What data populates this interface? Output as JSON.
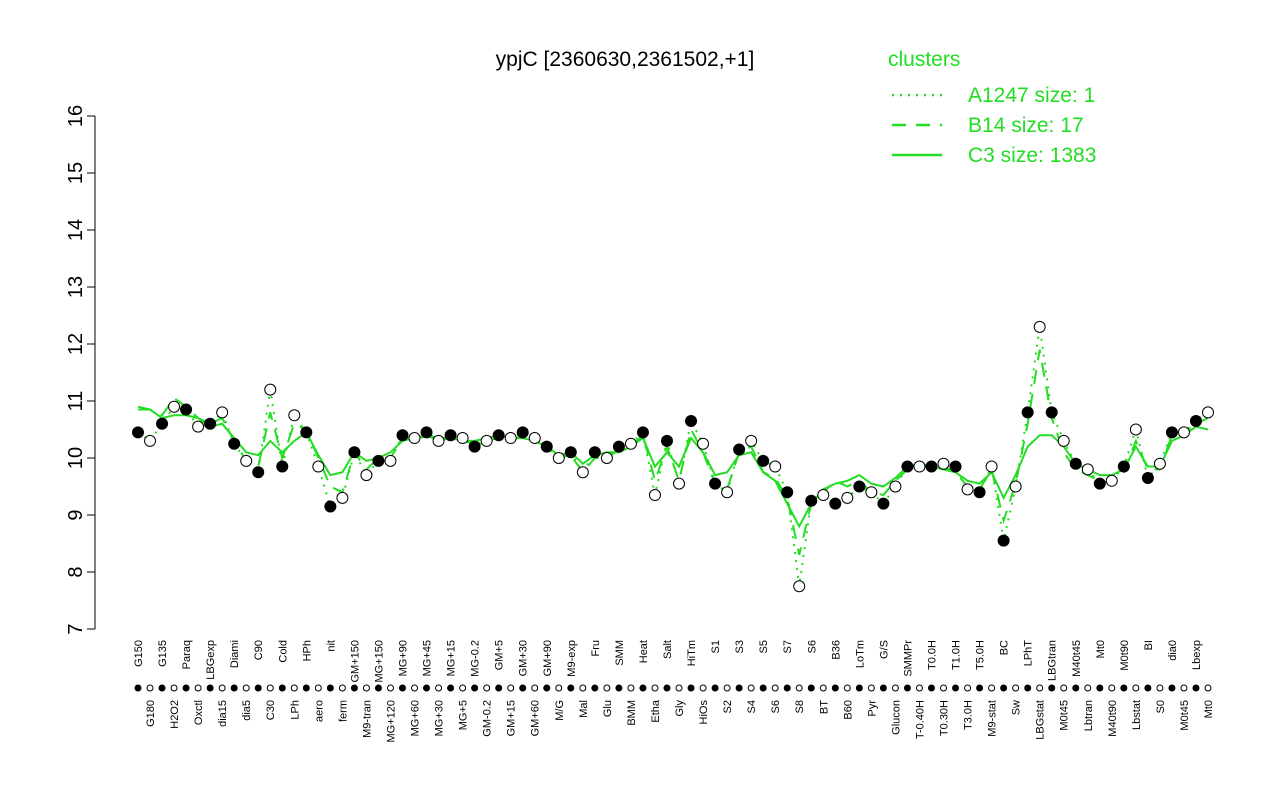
{
  "chart_data": {
    "type": "line",
    "title": "ypjC [2360630,2361502,+1]",
    "legend_title": "clusters",
    "legend_color": "#22dd22",
    "point_color": "#000000",
    "categories": [
      "G150",
      "G180",
      "G135",
      "H2O2",
      "Paraq",
      "Oxctl",
      "LBGexp",
      "dia15",
      "Diami",
      "dia5",
      "C90",
      "C30",
      "Cold",
      "LPh",
      "HPh",
      "aero",
      "nit",
      "ferm",
      "GM+150",
      "M9-tran",
      "MG+150",
      "MG+120",
      "MG+90",
      "MG+60",
      "MG+45",
      "MG+30",
      "MG+15",
      "MG+5",
      "MG-0.2",
      "GM-0.2",
      "GM+5",
      "GM+15",
      "GM+30",
      "GM+60",
      "GM+90",
      "M/G",
      "M9-exp",
      "Mal",
      "Fru",
      "Glu",
      "SMM",
      "BMM",
      "Heat",
      "Etha",
      "Salt",
      "Gly",
      "HiTm",
      "HiOs",
      "S1",
      "S2",
      "S3",
      "S4",
      "S5",
      "S6",
      "S7",
      "S8",
      "S6",
      "BT",
      "B36",
      "B60",
      "LoTm",
      "Pyr",
      "G/S",
      "Glucon",
      "SMMPr",
      "T-0.40H",
      "T0.0H",
      "T0.30H",
      "T1.0H",
      "T3.0H",
      "T5.0H",
      "M9-stat",
      "BC",
      "Sw",
      "LPhT",
      "LBGstat",
      "LBGtran",
      "M0t45",
      "M40t45",
      "Lbtran",
      "Mt0",
      "M40t90",
      "M0t90",
      "Lbstat",
      "BI",
      "S0",
      "dia0",
      "M0t45",
      "Lbexp",
      "Mt0"
    ],
    "values": [
      10.45,
      10.3,
      10.6,
      10.9,
      10.85,
      10.55,
      10.6,
      10.8,
      10.25,
      9.95,
      9.75,
      11.2,
      9.85,
      10.75,
      10.45,
      9.85,
      9.15,
      9.3,
      10.1,
      9.7,
      9.95,
      9.95,
      10.4,
      10.35,
      10.45,
      10.3,
      10.4,
      10.35,
      10.2,
      10.3,
      10.4,
      10.35,
      10.45,
      10.35,
      10.2,
      10.0,
      10.1,
      9.75,
      10.1,
      10.0,
      10.2,
      10.25,
      10.45,
      9.35,
      10.3,
      9.55,
      10.65,
      10.25,
      9.55,
      9.4,
      10.15,
      10.3,
      9.95,
      9.85,
      9.4,
      7.75,
      9.25,
      9.35,
      9.2,
      9.3,
      9.5,
      9.4,
      9.2,
      9.5,
      9.85,
      9.85,
      9.85,
      9.9,
      9.85,
      9.45,
      9.4,
      9.85,
      8.55,
      9.5,
      10.8,
      12.3,
      10.8,
      10.3,
      9.9,
      9.8,
      9.55,
      9.6,
      9.85,
      10.5,
      9.65,
      9.9,
      10.45,
      10.45,
      10.65,
      10.8
    ],
    "series": [
      {
        "name": "A1247 size: 1",
        "color": "#22dd22",
        "style": "dotted",
        "values": [
          10.45,
          10.3,
          10.6,
          10.9,
          10.85,
          10.55,
          10.6,
          10.8,
          10.25,
          9.95,
          9.75,
          11.2,
          9.85,
          10.75,
          10.45,
          9.85,
          9.15,
          9.3,
          10.1,
          9.7,
          9.95,
          9.95,
          10.4,
          10.35,
          10.45,
          10.3,
          10.4,
          10.35,
          10.2,
          10.3,
          10.4,
          10.35,
          10.45,
          10.35,
          10.2,
          10.0,
          10.1,
          9.75,
          10.1,
          10.0,
          10.2,
          10.25,
          10.45,
          9.35,
          10.3,
          9.55,
          10.65,
          10.25,
          9.55,
          9.4,
          10.15,
          10.3,
          9.95,
          9.85,
          9.4,
          7.75,
          9.25,
          9.35,
          9.2,
          9.3,
          9.5,
          9.4,
          9.2,
          9.5,
          9.85,
          9.85,
          9.85,
          9.9,
          9.85,
          9.45,
          9.4,
          9.85,
          8.55,
          9.5,
          10.8,
          12.3,
          10.8,
          10.3,
          9.9,
          9.8,
          9.55,
          9.6,
          9.85,
          10.5,
          9.65,
          9.9,
          10.45,
          10.45,
          10.65,
          10.8
        ]
      },
      {
        "name": "B14 size: 17",
        "color": "#22dd22",
        "style": "dashed",
        "values": [
          10.9,
          10.85,
          10.75,
          11.05,
          10.9,
          10.7,
          10.6,
          10.7,
          10.3,
          9.95,
          9.85,
          10.8,
          10.0,
          10.6,
          10.5,
          10.0,
          9.5,
          9.4,
          10.1,
          9.8,
          10.0,
          10.0,
          10.35,
          10.3,
          10.4,
          10.3,
          10.35,
          10.3,
          10.25,
          10.3,
          10.35,
          10.3,
          10.4,
          10.3,
          10.2,
          10.0,
          10.05,
          9.75,
          10.0,
          10.0,
          10.15,
          10.2,
          10.4,
          9.6,
          10.2,
          9.6,
          10.5,
          10.1,
          9.55,
          9.45,
          10.1,
          10.2,
          9.75,
          9.65,
          9.3,
          8.3,
          9.2,
          9.4,
          9.6,
          9.5,
          9.6,
          9.4,
          9.35,
          9.6,
          9.8,
          9.85,
          9.85,
          9.85,
          9.75,
          9.5,
          9.45,
          9.8,
          8.9,
          9.55,
          10.6,
          11.9,
          10.7,
          10.1,
          9.8,
          9.7,
          9.6,
          9.55,
          9.75,
          10.3,
          9.8,
          9.8,
          10.4,
          10.45,
          10.6,
          10.7
        ]
      },
      {
        "name": "C3 size: 1383",
        "color": "#22dd22",
        "style": "solid",
        "values": [
          10.85,
          10.85,
          10.7,
          10.75,
          10.75,
          10.7,
          10.55,
          10.6,
          10.35,
          10.1,
          10.05,
          10.3,
          10.1,
          10.3,
          10.45,
          10.05,
          9.7,
          9.75,
          10.1,
          9.95,
          10.0,
          10.1,
          10.3,
          10.35,
          10.4,
          10.35,
          10.35,
          10.3,
          10.3,
          10.35,
          10.4,
          10.35,
          10.35,
          10.3,
          10.2,
          10.05,
          10.1,
          9.9,
          10.05,
          10.1,
          10.1,
          10.2,
          10.35,
          9.85,
          10.1,
          9.85,
          10.35,
          10.1,
          9.7,
          9.75,
          10.05,
          10.1,
          9.75,
          9.6,
          9.2,
          8.8,
          9.2,
          9.45,
          9.55,
          9.6,
          9.7,
          9.55,
          9.5,
          9.65,
          9.85,
          9.9,
          9.85,
          9.8,
          9.75,
          9.6,
          9.55,
          9.75,
          9.3,
          9.7,
          10.2,
          10.4,
          10.4,
          10.2,
          9.9,
          9.8,
          9.7,
          9.7,
          9.8,
          10.2,
          9.85,
          9.85,
          10.3,
          10.4,
          10.55,
          10.5
        ]
      }
    ],
    "ylim": [
      7,
      16
    ],
    "yticks": [
      7,
      8,
      9,
      10,
      11,
      12,
      13,
      14,
      15,
      16
    ]
  }
}
